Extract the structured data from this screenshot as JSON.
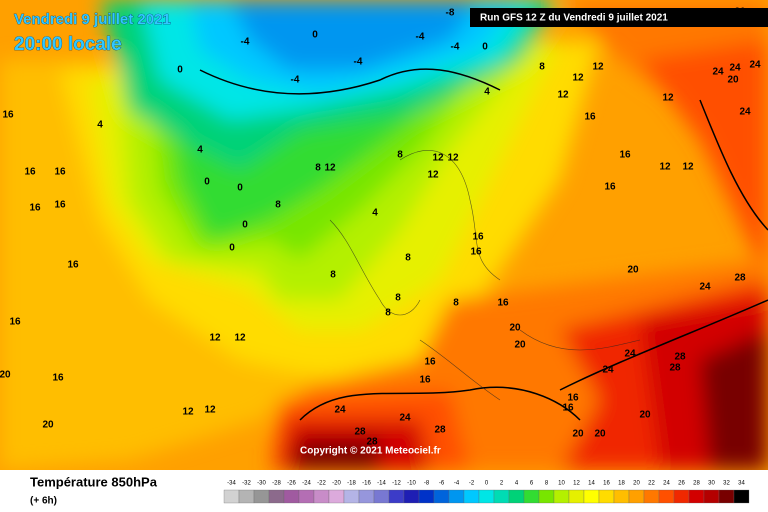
{
  "header": {
    "date": "Vendredi 9 juillet 2021",
    "time": "20:00 locale",
    "run": "Run GFS 12 Z du Vendredi 9 juillet 2021"
  },
  "copyright": "Copyright © 2021 Meteociel.fr",
  "legend": {
    "title": "Température 850hPa",
    "subtitle": "(+ 6h)",
    "values": [
      -34,
      -32,
      -30,
      -28,
      -26,
      -24,
      -22,
      -20,
      -18,
      -16,
      -14,
      -12,
      -10,
      -8,
      -6,
      -4,
      -2,
      0,
      2,
      4,
      6,
      8,
      10,
      12,
      14,
      16,
      18,
      20,
      22,
      24,
      26,
      28,
      30,
      32,
      34
    ],
    "colors": [
      "#d2d2d2",
      "#b4b4b4",
      "#969696",
      "#8c6a8c",
      "#a05aa0",
      "#b46eb4",
      "#c88cc8",
      "#dcaadc",
      "#b4b4e6",
      "#9696dc",
      "#7878d2",
      "#3c3cc8",
      "#1e1eb4",
      "#0032c8",
      "#0064dc",
      "#0096f0",
      "#00c8ff",
      "#00e6e6",
      "#00dcb4",
      "#00d278",
      "#32dc32",
      "#78e600",
      "#b4f000",
      "#e6f000",
      "#ffff00",
      "#ffdc00",
      "#ffbe00",
      "#ffa000",
      "#ff7800",
      "#ff5000",
      "#f02800",
      "#d20000",
      "#b40000",
      "#780000",
      "#000000"
    ]
  },
  "map": {
    "contour_labels": [
      16,
      16,
      16,
      16,
      16,
      16,
      16,
      20,
      16,
      20,
      12,
      12,
      12,
      12,
      4,
      4,
      0,
      0,
      0,
      0,
      8,
      8,
      4,
      8,
      8,
      8,
      8,
      16,
      16,
      16,
      20,
      20,
      16,
      16,
      24,
      24,
      28,
      28,
      28,
      16,
      16,
      24,
      24,
      28,
      28,
      20,
      20,
      20,
      24,
      28,
      20,
      16,
      16,
      12,
      12,
      16,
      12,
      12,
      12,
      8,
      12,
      24,
      24,
      20,
      24,
      24,
      20,
      0,
      -4,
      -4,
      0,
      -4,
      -4,
      -4,
      0,
      4,
      -8,
      12,
      12,
      12,
      8,
      12,
      8
    ]
  }
}
